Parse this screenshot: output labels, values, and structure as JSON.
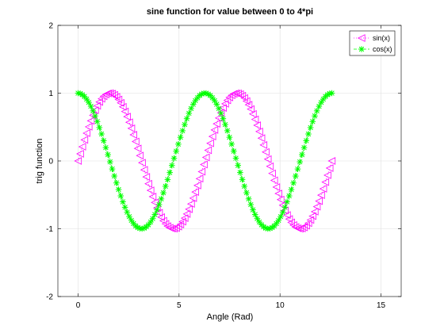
{
  "chart_data": {
    "type": "line",
    "title": "sine function for value between 0 to 4*pi",
    "xlabel": "Angle (Rad)",
    "ylabel": "trig function",
    "xlim": [
      -1,
      16
    ],
    "ylim": [
      -2,
      2
    ],
    "xticks": [
      0,
      5,
      10,
      15
    ],
    "yticks": [
      -2,
      -1,
      0,
      1,
      2
    ],
    "grid": true,
    "legend_position": "top-right",
    "x_range": [
      0,
      12.566
    ],
    "point_count": 120,
    "series": [
      {
        "name": "sin(x)",
        "function": "sin",
        "color": "#ff00ff",
        "line_style": "dotted",
        "marker": "left-triangle"
      },
      {
        "name": "cos(x)",
        "function": "cos",
        "color": "#00ff00",
        "line_style": "dashed",
        "marker": "asterisk"
      }
    ]
  }
}
